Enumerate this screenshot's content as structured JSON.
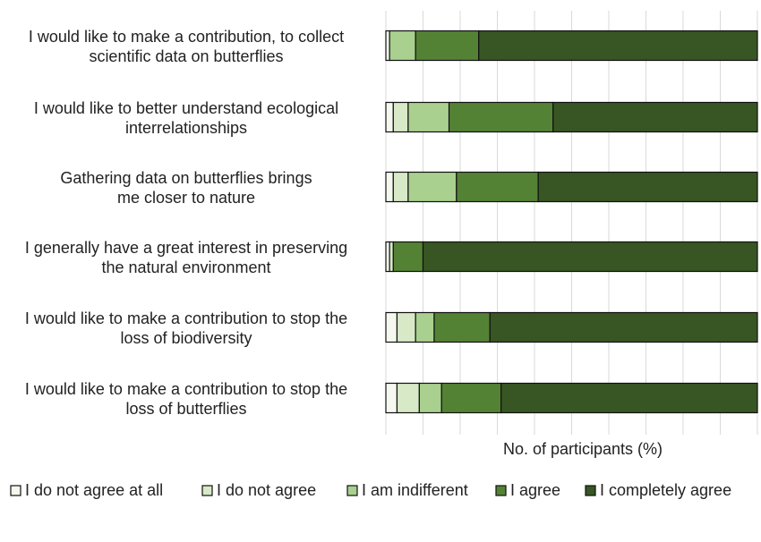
{
  "chart_data": {
    "type": "bar",
    "orientation": "horizontal",
    "stacked": true,
    "xlabel": "No. of participants  (%)",
    "xlim": [
      0,
      100
    ],
    "grid": true,
    "legend_position": "bottom",
    "categories": [
      [
        "I would like to make a contribution, to collect",
        "scientific data on butterflies"
      ],
      [
        "I would like to better understand ecological",
        "interrelationships"
      ],
      [
        "Gathering data on butterflies brings",
        "me closer to nature"
      ],
      [
        "I generally have a great interest in preserving",
        "the natural environment"
      ],
      [
        "I would like to make a contribution to stop the",
        "loss of biodiversity"
      ],
      [
        "I would like to make a contribution to stop the",
        "loss of butterflies"
      ]
    ],
    "series": [
      {
        "name": "I do not agree at all",
        "color": "#f4f8ef",
        "values": [
          1,
          2,
          2,
          1,
          3,
          3
        ]
      },
      {
        "name": "I do not agree",
        "color": "#d7e9c6",
        "values": [
          0,
          4,
          4,
          1,
          5,
          6
        ]
      },
      {
        "name": "I am indifferent",
        "color": "#a9d08e",
        "values": [
          7,
          11,
          13,
          0,
          5,
          6
        ]
      },
      {
        "name": "I agree",
        "color": "#548235",
        "values": [
          17,
          28,
          22,
          8,
          15,
          16
        ]
      },
      {
        "name": "I completely agree",
        "color": "#375623",
        "values": [
          75,
          55,
          59,
          90,
          72,
          69
        ]
      }
    ]
  }
}
